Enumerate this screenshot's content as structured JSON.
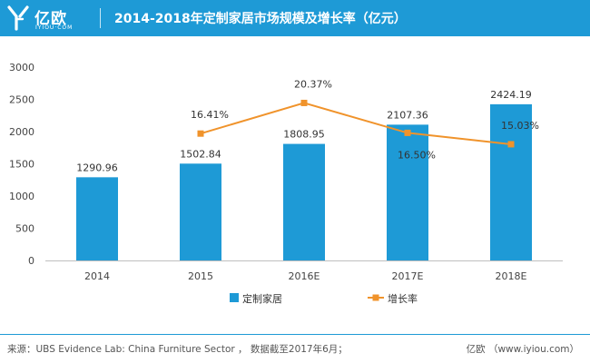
{
  "header": {
    "brand_name": "亿欧",
    "brand_sub": "IYIOU·COM",
    "title": "2014-2018年定制家居市场规模及增长率（亿元）"
  },
  "legend": {
    "bar_label": "定制家居",
    "line_label": "增长率"
  },
  "footer": {
    "source": "来源：UBS Evidence Lab: China Furniture Sector ， 数据截至2017年6月；",
    "brand": "亿欧 （www.iyiou.com）"
  },
  "colors": {
    "header": "#1e9ad6",
    "bar": "#1e9ad6",
    "line": "#f0932b",
    "marker": "#f0932b"
  },
  "chart_data": {
    "type": "bar",
    "title": "2014-2018年定制家居市场规模及增长率（亿元）",
    "categories": [
      "2014",
      "2015",
      "2016E",
      "2017E",
      "2018E"
    ],
    "ylim": [
      0,
      3000
    ],
    "yticks": [
      0,
      500,
      1000,
      1500,
      2000,
      2500,
      3000
    ],
    "grid": false,
    "legend_position": "bottom-center",
    "series": [
      {
        "name": "定制家居",
        "type": "bar",
        "values": [
          1290.96,
          1502.84,
          1808.95,
          2107.36,
          2424.19
        ],
        "labels": [
          "1290.96",
          "1502.84",
          "1808.95",
          "2107.36",
          "2424.19"
        ]
      },
      {
        "name": "增长率",
        "type": "line",
        "values": [
          null,
          16.41,
          20.37,
          16.5,
          15.03
        ],
        "labels": [
          null,
          "16.41%",
          "20.37%",
          "16.50%",
          "15.03%"
        ],
        "unit": "%",
        "secondary_axis_hidden": true
      }
    ]
  }
}
